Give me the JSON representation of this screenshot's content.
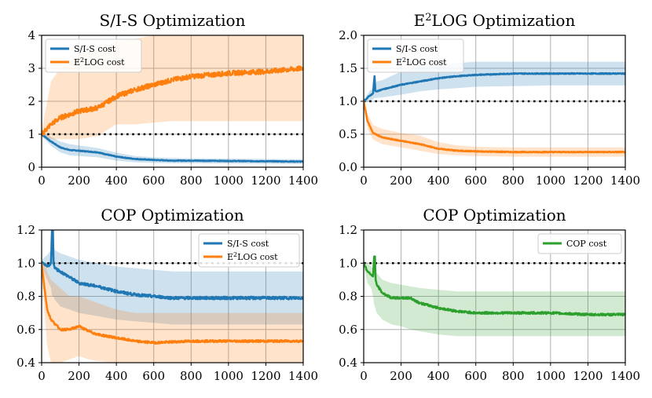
{
  "colors": {
    "s_is": "#1f77b4",
    "e2log": "#ff7f0e",
    "cop": "#2ca02c"
  },
  "chart_data": [
    {
      "type": "line",
      "title": "S/I-S Optimization",
      "title_segments": [
        {
          "t": "S/I-S Optimization"
        }
      ],
      "xlim": [
        0,
        1400
      ],
      "ylim": [
        0,
        4
      ],
      "xticks": [
        0,
        200,
        400,
        600,
        800,
        1000,
        1200,
        1400
      ],
      "yticks": [
        0,
        1,
        2,
        3,
        4
      ],
      "ytick_labels": [
        "0",
        "1",
        "2",
        "3",
        "4"
      ],
      "reference_line": 1,
      "legend": "top-left",
      "series": [
        {
          "name": "S/I-S cost",
          "label_segments": [
            {
              "t": "S/I-S cost"
            }
          ],
          "color": "s_is",
          "noise": 0.01,
          "x": [
            0,
            50,
            100,
            150,
            200,
            300,
            400,
            500,
            600,
            700,
            800,
            1000,
            1200,
            1400
          ],
          "y": [
            1.0,
            0.78,
            0.6,
            0.52,
            0.5,
            0.45,
            0.32,
            0.25,
            0.22,
            0.2,
            0.2,
            0.19,
            0.18,
            0.17
          ],
          "band_upper": [
            1.05,
            0.92,
            0.78,
            0.7,
            0.66,
            0.58,
            0.44,
            0.34,
            0.3,
            0.28,
            0.27,
            0.26,
            0.25,
            0.24
          ],
          "band_lower": [
            0.95,
            0.65,
            0.45,
            0.36,
            0.34,
            0.3,
            0.2,
            0.15,
            0.13,
            0.12,
            0.12,
            0.11,
            0.1,
            0.1
          ]
        },
        {
          "name": "E2LOG cost",
          "label_segments": [
            {
              "t": "E"
            },
            {
              "t": "2",
              "sup": true
            },
            {
              "t": "LOG cost"
            }
          ],
          "color": "e2log",
          "noise": 0.07,
          "x": [
            0,
            50,
            100,
            200,
            300,
            400,
            500,
            600,
            700,
            800,
            900,
            1000,
            1100,
            1200,
            1300,
            1400
          ],
          "y": [
            1.0,
            1.3,
            1.5,
            1.7,
            1.8,
            2.15,
            2.35,
            2.5,
            2.65,
            2.75,
            2.8,
            2.85,
            2.88,
            2.9,
            2.95,
            3.0
          ],
          "band_upper": [
            1.1,
            2.6,
            3.0,
            3.4,
            3.6,
            3.8,
            3.9,
            4.0,
            4.0,
            4.0,
            4.0,
            4.0,
            4.0,
            4.0,
            4.0,
            4.0
          ],
          "band_lower": [
            0.9,
            0.85,
            0.85,
            0.85,
            0.95,
            1.3,
            1.3,
            1.35,
            1.4,
            1.4,
            1.4,
            1.4,
            1.4,
            1.4,
            1.4,
            1.4
          ]
        }
      ]
    },
    {
      "type": "line",
      "title": "E2LOG Optimization",
      "title_segments": [
        {
          "t": "E"
        },
        {
          "t": "2",
          "sup": true
        },
        {
          "t": "LOG Optimization"
        }
      ],
      "xlim": [
        0,
        1400
      ],
      "ylim": [
        0,
        2
      ],
      "xticks": [
        0,
        200,
        400,
        600,
        800,
        1000,
        1200,
        1400
      ],
      "yticks": [
        0,
        0.5,
        1,
        1.5,
        2
      ],
      "ytick_labels": [
        "0.0",
        "0.5",
        "1.0",
        "1.5",
        "2.0"
      ],
      "reference_line": 1,
      "legend": "top-left",
      "series": [
        {
          "name": "S/I-S cost",
          "label_segments": [
            {
              "t": "S/I-S cost"
            }
          ],
          "color": "s_is",
          "noise": 0.006,
          "x": [
            0,
            30,
            50,
            58,
            62,
            70,
            100,
            200,
            300,
            400,
            500,
            600,
            800,
            1000,
            1200,
            1400
          ],
          "y": [
            1.0,
            1.08,
            1.12,
            1.38,
            1.16,
            1.15,
            1.18,
            1.25,
            1.3,
            1.35,
            1.38,
            1.4,
            1.42,
            1.42,
            1.42,
            1.42
          ],
          "band_upper": [
            1.02,
            1.15,
            1.2,
            1.25,
            1.25,
            1.3,
            1.32,
            1.45,
            1.52,
            1.55,
            1.58,
            1.6,
            1.6,
            1.6,
            1.6,
            1.6
          ],
          "band_lower": [
            0.98,
            1.0,
            1.03,
            1.05,
            1.05,
            1.05,
            1.06,
            1.1,
            1.15,
            1.18,
            1.2,
            1.22,
            1.23,
            1.24,
            1.24,
            1.24
          ]
        },
        {
          "name": "E2LOG cost",
          "label_segments": [
            {
              "t": "E"
            },
            {
              "t": "2",
              "sup": true
            },
            {
              "t": "LOG cost"
            }
          ],
          "color": "e2log",
          "noise": 0.006,
          "x": [
            0,
            20,
            50,
            100,
            200,
            300,
            400,
            500,
            600,
            800,
            1000,
            1200,
            1400
          ],
          "y": [
            1.0,
            0.7,
            0.52,
            0.45,
            0.4,
            0.35,
            0.28,
            0.25,
            0.24,
            0.23,
            0.23,
            0.23,
            0.23
          ],
          "band_upper": [
            1.02,
            0.82,
            0.64,
            0.58,
            0.52,
            0.48,
            0.38,
            0.33,
            0.31,
            0.3,
            0.3,
            0.3,
            0.3
          ],
          "band_lower": [
            0.98,
            0.58,
            0.42,
            0.35,
            0.3,
            0.25,
            0.2,
            0.18,
            0.17,
            0.16,
            0.16,
            0.16,
            0.16
          ]
        }
      ]
    },
    {
      "type": "line",
      "title": "COP Optimization",
      "title_segments": [
        {
          "t": "COP Optimization"
        }
      ],
      "xlim": [
        0,
        1400
      ],
      "ylim": [
        0.4,
        1.2
      ],
      "xticks": [
        0,
        200,
        400,
        600,
        800,
        1000,
        1200,
        1400
      ],
      "yticks": [
        0.4,
        0.6,
        0.8,
        1.0,
        1.2
      ],
      "ytick_labels": [
        "0.4",
        "0.6",
        "0.8",
        "1.0",
        "1.2"
      ],
      "reference_line": 1,
      "legend": "top-right",
      "series": [
        {
          "name": "S/I-S cost",
          "label_segments": [
            {
              "t": "S/I-S cost"
            }
          ],
          "color": "s_is",
          "noise": 0.008,
          "x": [
            0,
            30,
            50,
            56,
            60,
            64,
            70,
            100,
            200,
            300,
            400,
            500,
            600,
            700,
            800,
            1000,
            1200,
            1400
          ],
          "y": [
            1.0,
            0.98,
            1.0,
            1.21,
            1.21,
            1.0,
            0.97,
            0.95,
            0.88,
            0.86,
            0.83,
            0.81,
            0.8,
            0.79,
            0.79,
            0.79,
            0.79,
            0.79
          ],
          "band_upper": [
            1.02,
            1.05,
            1.08,
            1.1,
            1.1,
            1.1,
            1.08,
            1.06,
            1.02,
            1.0,
            0.98,
            0.97,
            0.96,
            0.95,
            0.95,
            0.95,
            0.95,
            0.95
          ],
          "band_lower": [
            0.98,
            0.9,
            0.85,
            0.8,
            0.8,
            0.8,
            0.78,
            0.74,
            0.7,
            0.68,
            0.66,
            0.65,
            0.64,
            0.63,
            0.63,
            0.63,
            0.63,
            0.63
          ]
        },
        {
          "name": "E2LOG cost",
          "label_segments": [
            {
              "t": "E"
            },
            {
              "t": "2",
              "sup": true
            },
            {
              "t": "LOG cost"
            }
          ],
          "color": "e2log",
          "noise": 0.006,
          "x": [
            0,
            15,
            30,
            50,
            100,
            150,
            200,
            250,
            300,
            400,
            500,
            600,
            800,
            1000,
            1200,
            1400
          ],
          "y": [
            1.0,
            0.85,
            0.72,
            0.66,
            0.6,
            0.6,
            0.62,
            0.59,
            0.57,
            0.55,
            0.53,
            0.52,
            0.53,
            0.53,
            0.53,
            0.53
          ],
          "band_upper": [
            1.02,
            1.0,
            0.95,
            0.9,
            0.85,
            0.8,
            0.8,
            0.78,
            0.76,
            0.72,
            0.7,
            0.7,
            0.7,
            0.7,
            0.7,
            0.7
          ],
          "band_lower": [
            0.98,
            0.7,
            0.5,
            0.4,
            0.4,
            0.42,
            0.44,
            0.42,
            0.41,
            0.4,
            0.4,
            0.4,
            0.4,
            0.4,
            0.4,
            0.4
          ]
        }
      ]
    },
    {
      "type": "line",
      "title": "COP Optimization",
      "title_segments": [
        {
          "t": "COP Optimization"
        }
      ],
      "xlim": [
        0,
        1400
      ],
      "ylim": [
        0.4,
        1.2
      ],
      "xticks": [
        0,
        200,
        400,
        600,
        800,
        1000,
        1200,
        1400
      ],
      "yticks": [
        0.4,
        0.6,
        0.8,
        1.0,
        1.2
      ],
      "ytick_labels": [
        "0.4",
        "0.6",
        "0.8",
        "1.0",
        "1.2"
      ],
      "reference_line": 1,
      "legend": "top-right",
      "series": [
        {
          "name": "COP cost",
          "label_segments": [
            {
              "t": "COP cost"
            }
          ],
          "color": "cop",
          "noise": 0.006,
          "x": [
            0,
            20,
            40,
            50,
            56,
            60,
            64,
            70,
            100,
            150,
            200,
            250,
            300,
            400,
            500,
            600,
            700,
            800,
            1000,
            1200,
            1400
          ],
          "y": [
            1.0,
            0.95,
            0.93,
            0.92,
            1.04,
            1.04,
            0.9,
            0.87,
            0.82,
            0.79,
            0.79,
            0.79,
            0.76,
            0.73,
            0.71,
            0.7,
            0.7,
            0.7,
            0.7,
            0.69,
            0.69
          ],
          "band_upper": [
            1.02,
            1.0,
            0.98,
            0.97,
            0.96,
            0.96,
            0.95,
            0.94,
            0.9,
            0.88,
            0.87,
            0.86,
            0.85,
            0.84,
            0.83,
            0.83,
            0.83,
            0.83,
            0.83,
            0.83,
            0.83
          ],
          "band_lower": [
            0.98,
            0.88,
            0.85,
            0.8,
            0.75,
            0.74,
            0.72,
            0.7,
            0.66,
            0.63,
            0.62,
            0.6,
            0.59,
            0.57,
            0.56,
            0.56,
            0.56,
            0.56,
            0.56,
            0.56,
            0.56
          ]
        }
      ]
    }
  ]
}
